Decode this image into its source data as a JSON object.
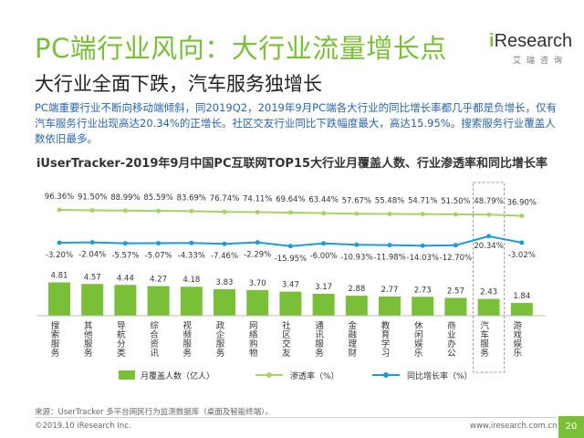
{
  "title": "PC端行业风向：大行业流量增长点",
  "logo": {
    "brand_i": "i",
    "brand_rest": "Research",
    "sub": "艾瑞咨询"
  },
  "subtitle": "大行业全面下跌，汽车服务独增长",
  "description": "PC端重要行业不断向移动端倾斜，同2019Q2，2019年9月PC端各大行业的同比增长率都几乎都是负增长，仅有汽车服务行业出现高达20.34%的正增长。社区交友行业同比下跌幅度最大，高达15.95%。搜索服务行业覆盖人数依旧最多。",
  "source": "来源：UserTracker 多平台网民行为监测数据库（桌面及智能终端）。",
  "copyright": "©2019.10 iResearch Inc.",
  "website": "www.iresearch.com.cn",
  "page_number": "20",
  "colors": {
    "accent": "#79bf37",
    "penetration": "#a6d463",
    "growth": "#1e9bd7"
  },
  "chart_data": {
    "type": "bar",
    "title": "iUserTracker-2019年9月中国PC互联网TOP15大行业月覆盖人数、行业渗透率和同比增长率",
    "categories": [
      "搜索服务",
      "其他服务",
      "导航分类",
      "综合资讯",
      "视频服务",
      "政企服务",
      "网络购物",
      "社区交友",
      "通讯服务",
      "金融理财",
      "教育学习",
      "休闲娱乐",
      "商业办公",
      "汽车服务",
      "游戏娱乐"
    ],
    "highlight_category": "汽车服务",
    "series": [
      {
        "name": "月覆盖人数（亿人）",
        "type": "bar",
        "values": [
          4.81,
          4.57,
          4.44,
          4.27,
          4.18,
          3.83,
          3.7,
          3.47,
          3.17,
          2.88,
          2.77,
          2.73,
          2.57,
          2.43,
          1.84
        ],
        "labels": [
          "4.81",
          "4.57",
          "4.44",
          "4.27",
          "4.18",
          "3.83",
          "3.70",
          "3.47",
          "3.17",
          "2.88",
          "2.77",
          "2.73",
          "2.57",
          "2.43",
          "1.84"
        ]
      },
      {
        "name": "渗透率（%）",
        "type": "line",
        "values": [
          96.36,
          91.5,
          88.99,
          85.59,
          83.69,
          76.74,
          74.11,
          69.64,
          63.44,
          57.67,
          55.48,
          54.71,
          51.5,
          48.79,
          36.9
        ],
        "labels": [
          "96.36%",
          "91.50%",
          "88.99%",
          "85.59%",
          "83.69%",
          "76.74%",
          "74.11%",
          "69.64%",
          "63.44%",
          "57.67%",
          "55.48%",
          "54.71%",
          "51.50%",
          "48.79%",
          "36.90%"
        ]
      },
      {
        "name": "同比增长率（%）",
        "type": "line",
        "values": [
          -3.2,
          -2.04,
          -5.57,
          -5.07,
          -4.33,
          -7.46,
          -2.29,
          -15.95,
          -6.0,
          -10.93,
          -11.98,
          -14.03,
          -12.7,
          20.34,
          -3.02
        ],
        "labels": [
          "-3.20%",
          "-2.04%",
          "-5.57%",
          "-5.07%",
          "-4.33%",
          "-7.46%",
          "-2.29%",
          "-15.95%",
          "-6.00%",
          "-10.93%",
          "-11.98%",
          "-14.03%",
          "-12.70%",
          "20.34%",
          "-3.02%"
        ]
      }
    ],
    "legend_position": "bottom",
    "grid": false
  }
}
